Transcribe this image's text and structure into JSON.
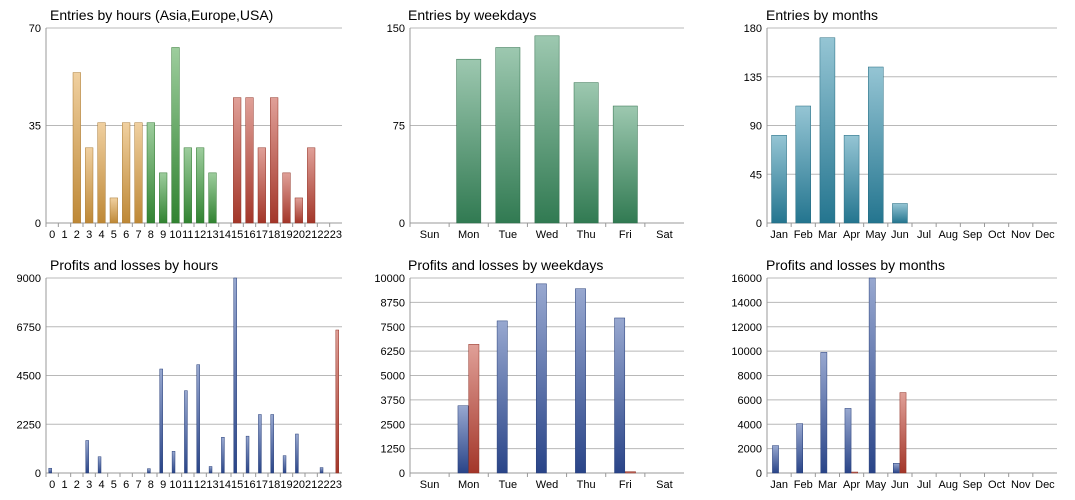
{
  "colors": {
    "orange": "#e0a040",
    "green": "#3a9a3a",
    "red": "#c04030",
    "mint": "#3a9060",
    "teal": "#2a8aa8",
    "blue": "#3050a0",
    "loss": "#c04030",
    "grid": "#b8b8b8"
  },
  "chart_data": [
    {
      "id": "entries-hours",
      "type": "bar",
      "title": "Entries by hours (Asia,Europe,USA)",
      "categories": [
        "0",
        "1",
        "2",
        "3",
        "4",
        "5",
        "6",
        "7",
        "8",
        "9",
        "10",
        "11",
        "12",
        "13",
        "14",
        "15",
        "16",
        "17",
        "18",
        "19",
        "20",
        "21",
        "22",
        "23"
      ],
      "ylim": [
        0,
        70
      ],
      "yticks": [
        0,
        35,
        70
      ],
      "series": [
        {
          "values": [
            0,
            0,
            54,
            27,
            36,
            9,
            36,
            36,
            36,
            18,
            63,
            27,
            27,
            18,
            0,
            45,
            45,
            27,
            45,
            18,
            9,
            27,
            0,
            0
          ],
          "colors": [
            "orange",
            "orange",
            "orange",
            "orange",
            "orange",
            "orange",
            "orange",
            "orange",
            "green",
            "green",
            "green",
            "green",
            "green",
            "green",
            "red",
            "red",
            "red",
            "red",
            "red",
            "red",
            "red",
            "red",
            "red",
            "red"
          ]
        }
      ]
    },
    {
      "id": "entries-weekdays",
      "type": "bar",
      "title": "Entries by weekdays",
      "categories": [
        "Sun",
        "Mon",
        "Tue",
        "Wed",
        "Thu",
        "Fri",
        "Sat"
      ],
      "ylim": [
        0,
        150
      ],
      "yticks": [
        0,
        75,
        150
      ],
      "series": [
        {
          "values": [
            0,
            126,
            135,
            144,
            108,
            90,
            0
          ],
          "color": "mint"
        }
      ]
    },
    {
      "id": "entries-months",
      "type": "bar",
      "title": "Entries by months",
      "categories": [
        "Jan",
        "Feb",
        "Mar",
        "Apr",
        "May",
        "Jun",
        "Jul",
        "Aug",
        "Sep",
        "Oct",
        "Nov",
        "Dec"
      ],
      "ylim": [
        0,
        180
      ],
      "yticks": [
        0,
        45,
        90,
        135,
        180
      ],
      "series": [
        {
          "values": [
            81,
            108,
            171,
            81,
            144,
            18,
            0,
            0,
            0,
            0,
            0,
            0
          ],
          "color": "teal"
        }
      ]
    },
    {
      "id": "pl-hours",
      "type": "bar",
      "title": "Profits and losses by hours",
      "categories": [
        "0",
        "1",
        "2",
        "3",
        "4",
        "5",
        "6",
        "7",
        "8",
        "9",
        "10",
        "11",
        "12",
        "13",
        "14",
        "15",
        "16",
        "17",
        "18",
        "19",
        "20",
        "21",
        "22",
        "23"
      ],
      "ylim": [
        0,
        9000
      ],
      "yticks": [
        0,
        2250,
        4500,
        6750,
        9000
      ],
      "series": [
        {
          "values": [
            220,
            0,
            0,
            1500,
            750,
            0,
            0,
            0,
            200,
            4800,
            1000,
            3800,
            5000,
            300,
            1650,
            9000,
            1700,
            2700,
            2700,
            800,
            1800,
            0,
            250,
            0
          ],
          "color": "blue"
        },
        {
          "values": [
            0,
            0,
            0,
            0,
            0,
            0,
            0,
            0,
            0,
            0,
            0,
            0,
            0,
            0,
            0,
            0,
            0,
            0,
            0,
            0,
            0,
            0,
            0,
            6600
          ],
          "color": "loss"
        }
      ]
    },
    {
      "id": "pl-weekdays",
      "type": "bar",
      "title": "Profits and losses by weekdays",
      "categories": [
        "Sun",
        "Mon",
        "Tue",
        "Wed",
        "Thu",
        "Fri",
        "Sat"
      ],
      "ylim": [
        0,
        10000
      ],
      "yticks": [
        0,
        1250,
        2500,
        3750,
        5000,
        6250,
        7500,
        8750,
        10000
      ],
      "series": [
        {
          "values": [
            0,
            3450,
            7800,
            9700,
            9450,
            7950,
            0
          ],
          "color": "blue"
        },
        {
          "values": [
            0,
            6600,
            0,
            0,
            0,
            70,
            0
          ],
          "color": "loss"
        }
      ]
    },
    {
      "id": "pl-months",
      "type": "bar",
      "title": "Profits and losses by months",
      "categories": [
        "Jan",
        "Feb",
        "Mar",
        "Apr",
        "May",
        "Jun",
        "Jul",
        "Aug",
        "Sep",
        "Oct",
        "Nov",
        "Dec"
      ],
      "ylim": [
        0,
        16000
      ],
      "yticks": [
        0,
        2000,
        4000,
        6000,
        8000,
        10000,
        12000,
        14000,
        16000
      ],
      "series": [
        {
          "values": [
            2250,
            4050,
            9900,
            5300,
            16000,
            800,
            0,
            0,
            0,
            0,
            0,
            0
          ],
          "color": "blue"
        },
        {
          "values": [
            0,
            0,
            0,
            80,
            0,
            6600,
            0,
            0,
            0,
            0,
            0,
            0
          ],
          "color": "loss"
        }
      ]
    }
  ]
}
